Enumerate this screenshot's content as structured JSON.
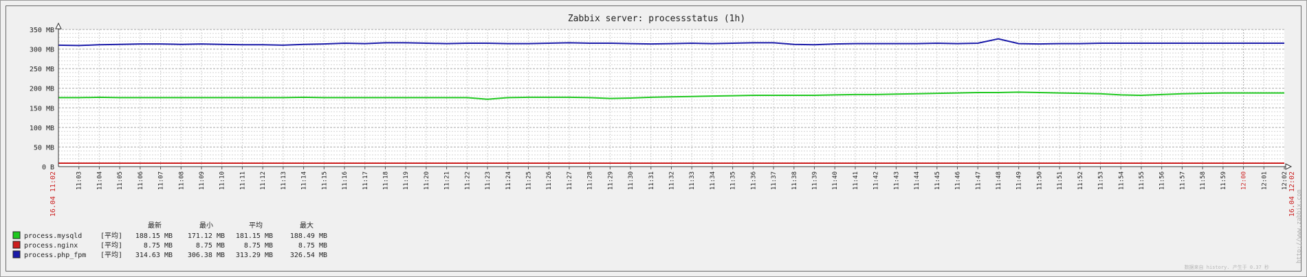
{
  "chart_data": {
    "type": "line",
    "title": "Zabbix server: processstatus (1h)",
    "y_unit": "MB",
    "ylim": [
      0,
      350
    ],
    "y_ticks": [
      {
        "value": 0,
        "label": "0 B"
      },
      {
        "value": 50,
        "label": "50 MB"
      },
      {
        "value": 100,
        "label": "100 MB"
      },
      {
        "value": 150,
        "label": "150 MB"
      },
      {
        "value": 200,
        "label": "200 MB"
      },
      {
        "value": 250,
        "label": "250 MB"
      },
      {
        "value": 300,
        "label": "300 MB"
      },
      {
        "value": 350,
        "label": "350 MB"
      }
    ],
    "x_start_label": "16.04 11:02",
    "x_end_label": "16.04 12:02",
    "x_ticks": [
      "11:03",
      "11:04",
      "11:05",
      "11:06",
      "11:07",
      "11:08",
      "11:09",
      "11:10",
      "11:11",
      "11:12",
      "11:13",
      "11:14",
      "11:15",
      "11:16",
      "11:17",
      "11:18",
      "11:19",
      "11:20",
      "11:21",
      "11:22",
      "11:23",
      "11:24",
      "11:25",
      "11:26",
      "11:27",
      "11:28",
      "11:29",
      "11:30",
      "11:31",
      "11:32",
      "11:33",
      "11:34",
      "11:35",
      "11:36",
      "11:37",
      "11:38",
      "11:39",
      "11:40",
      "11:41",
      "11:42",
      "11:43",
      "11:44",
      "11:45",
      "11:46",
      "11:47",
      "11:48",
      "11:49",
      "11:50",
      "11:51",
      "11:52",
      "11:53",
      "11:54",
      "11:55",
      "11:56",
      "11:57",
      "11:58",
      "11:59",
      "12:00",
      "12:01",
      "12:02"
    ],
    "highlight_ticks": [
      "12:00"
    ],
    "x_minutes": [
      0,
      1,
      2,
      3,
      4,
      5,
      6,
      7,
      8,
      9,
      10,
      11,
      12,
      13,
      14,
      15,
      16,
      17,
      18,
      19,
      20,
      21,
      22,
      23,
      24,
      25,
      26,
      27,
      28,
      29,
      30,
      31,
      32,
      33,
      34,
      35,
      36,
      37,
      38,
      39,
      40,
      41,
      42,
      43,
      44,
      45,
      46,
      47,
      48,
      49,
      50,
      51,
      52,
      53,
      54,
      55,
      56,
      57,
      58,
      59,
      60
    ],
    "series": [
      {
        "name": "process.mysqld",
        "color": "#1ec81e",
        "values": [
          176,
          176,
          177,
          176,
          176,
          176,
          176,
          176,
          176,
          176,
          176,
          176,
          177,
          176,
          176,
          176,
          176,
          176,
          176,
          176,
          176,
          172,
          176,
          177,
          177,
          177,
          176,
          174,
          175,
          177,
          178,
          179,
          180,
          181,
          182,
          182,
          182,
          182,
          183,
          184,
          184,
          185,
          186,
          187,
          188,
          189,
          189,
          190,
          189,
          188,
          187,
          186,
          183,
          182,
          184,
          186,
          187,
          188,
          188,
          188,
          188
        ]
      },
      {
        "name": "process.nginx",
        "color": "#cc1e1e",
        "values": [
          8.75,
          8.75,
          8.75,
          8.75,
          8.75,
          8.75,
          8.75,
          8.75,
          8.75,
          8.75,
          8.75,
          8.75,
          8.75,
          8.75,
          8.75,
          8.75,
          8.75,
          8.75,
          8.75,
          8.75,
          8.75,
          8.75,
          8.75,
          8.75,
          8.75,
          8.75,
          8.75,
          8.75,
          8.75,
          8.75,
          8.75,
          8.75,
          8.75,
          8.75,
          8.75,
          8.75,
          8.75,
          8.75,
          8.75,
          8.75,
          8.75,
          8.75,
          8.75,
          8.75,
          8.75,
          8.75,
          8.75,
          8.75,
          8.75,
          8.75,
          8.75,
          8.75,
          8.75,
          8.75,
          8.75,
          8.75,
          8.75,
          8.75,
          8.75,
          8.75,
          8.75
        ]
      },
      {
        "name": "process.php_fpm",
        "color": "#1a1aa8",
        "values": [
          310,
          309,
          311,
          312,
          313,
          313,
          312,
          313,
          312,
          311,
          311,
          310,
          312,
          313,
          315,
          314,
          316,
          316,
          315,
          314,
          315,
          315,
          314,
          314,
          315,
          316,
          315,
          315,
          314,
          313,
          314,
          315,
          314,
          315,
          316,
          316,
          312,
          311,
          313,
          314,
          314,
          314,
          314,
          315,
          314,
          315,
          326,
          314,
          313,
          314,
          314,
          315,
          315,
          315,
          315,
          315,
          315,
          315,
          315,
          315,
          315
        ]
      }
    ],
    "legend": {
      "placement": "bottom-left",
      "headers": [
        "最新",
        "最小",
        "平均",
        "最大"
      ],
      "rows": [
        {
          "name": "process.mysqld",
          "func": "[平均]",
          "last": "188.15 MB",
          "min": "171.12 MB",
          "avg": "181.15 MB",
          "max": "188.49 MB",
          "color": "#1ec81e"
        },
        {
          "name": "process.nginx",
          "func": "[平均]",
          "last": "8.75 MB",
          "min": "8.75 MB",
          "avg": "8.75 MB",
          "max": "8.75 MB",
          "color": "#cc1e1e"
        },
        {
          "name": "process.php_fpm",
          "func": "[平均]",
          "last": "314.63 MB",
          "min": "306.38 MB",
          "avg": "313.29 MB",
          "max": "326.54 MB",
          "color": "#1a1aa8"
        }
      ]
    },
    "watermark": "http://www.zabbix.com",
    "footer_note": "数据来自 history. 产生于 0.37 秒"
  }
}
